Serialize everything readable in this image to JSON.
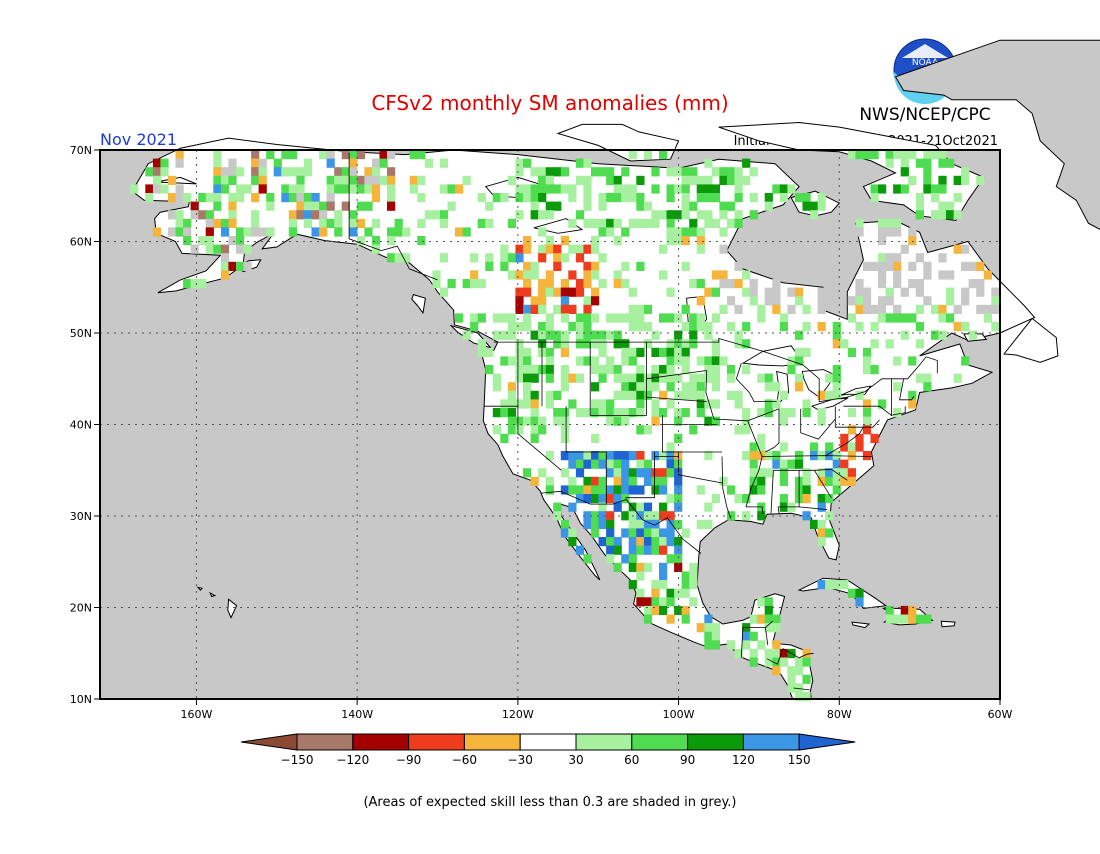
{
  "title": "CFSv2 monthly SM anomalies (mm)",
  "month": "Nov 2021",
  "agency": "NWS/NCEP/CPC",
  "logo_text": "NOAA",
  "initial_conditions": "Initial conditions: 12Oct2021-21Oct2021",
  "footnote": "(Areas of expected skill less than 0.3 are shaded in grey.)",
  "map": {
    "lon_range": [
      -172,
      -60
    ],
    "lat_range": [
      10,
      70
    ],
    "lat_ticks": [
      {
        "value": 70,
        "label": "70N"
      },
      {
        "value": 60,
        "label": "60N"
      },
      {
        "value": 50,
        "label": "50N"
      },
      {
        "value": 40,
        "label": "40N"
      },
      {
        "value": 30,
        "label": "30N"
      },
      {
        "value": 20,
        "label": "20N"
      },
      {
        "value": 10,
        "label": "10N"
      }
    ],
    "lon_ticks": [
      {
        "value": -160,
        "label": "160W"
      },
      {
        "value": -140,
        "label": "140W"
      },
      {
        "value": -120,
        "label": "120W"
      },
      {
        "value": -100,
        "label": "100W"
      },
      {
        "value": -80,
        "label": "80W"
      },
      {
        "value": -60,
        "label": "60W"
      }
    ]
  },
  "colorbar": {
    "labels": [
      "-150",
      "-120",
      "-90",
      "-60",
      "-30",
      "30",
      "60",
      "90",
      "120",
      "150"
    ],
    "colors": [
      "#8c4a33",
      "#a8786a",
      "#a50000",
      "#f03c1e",
      "#f5b43c",
      "#ffffff",
      "#a6f0a0",
      "#50dc50",
      "#0a9a0a",
      "#3c96e6",
      "#1e64d2"
    ]
  },
  "colors": {
    "ocean": "#c8c8c8",
    "land": "#ffffff",
    "title": "#e00000",
    "month": "#1e3cdc"
  }
}
